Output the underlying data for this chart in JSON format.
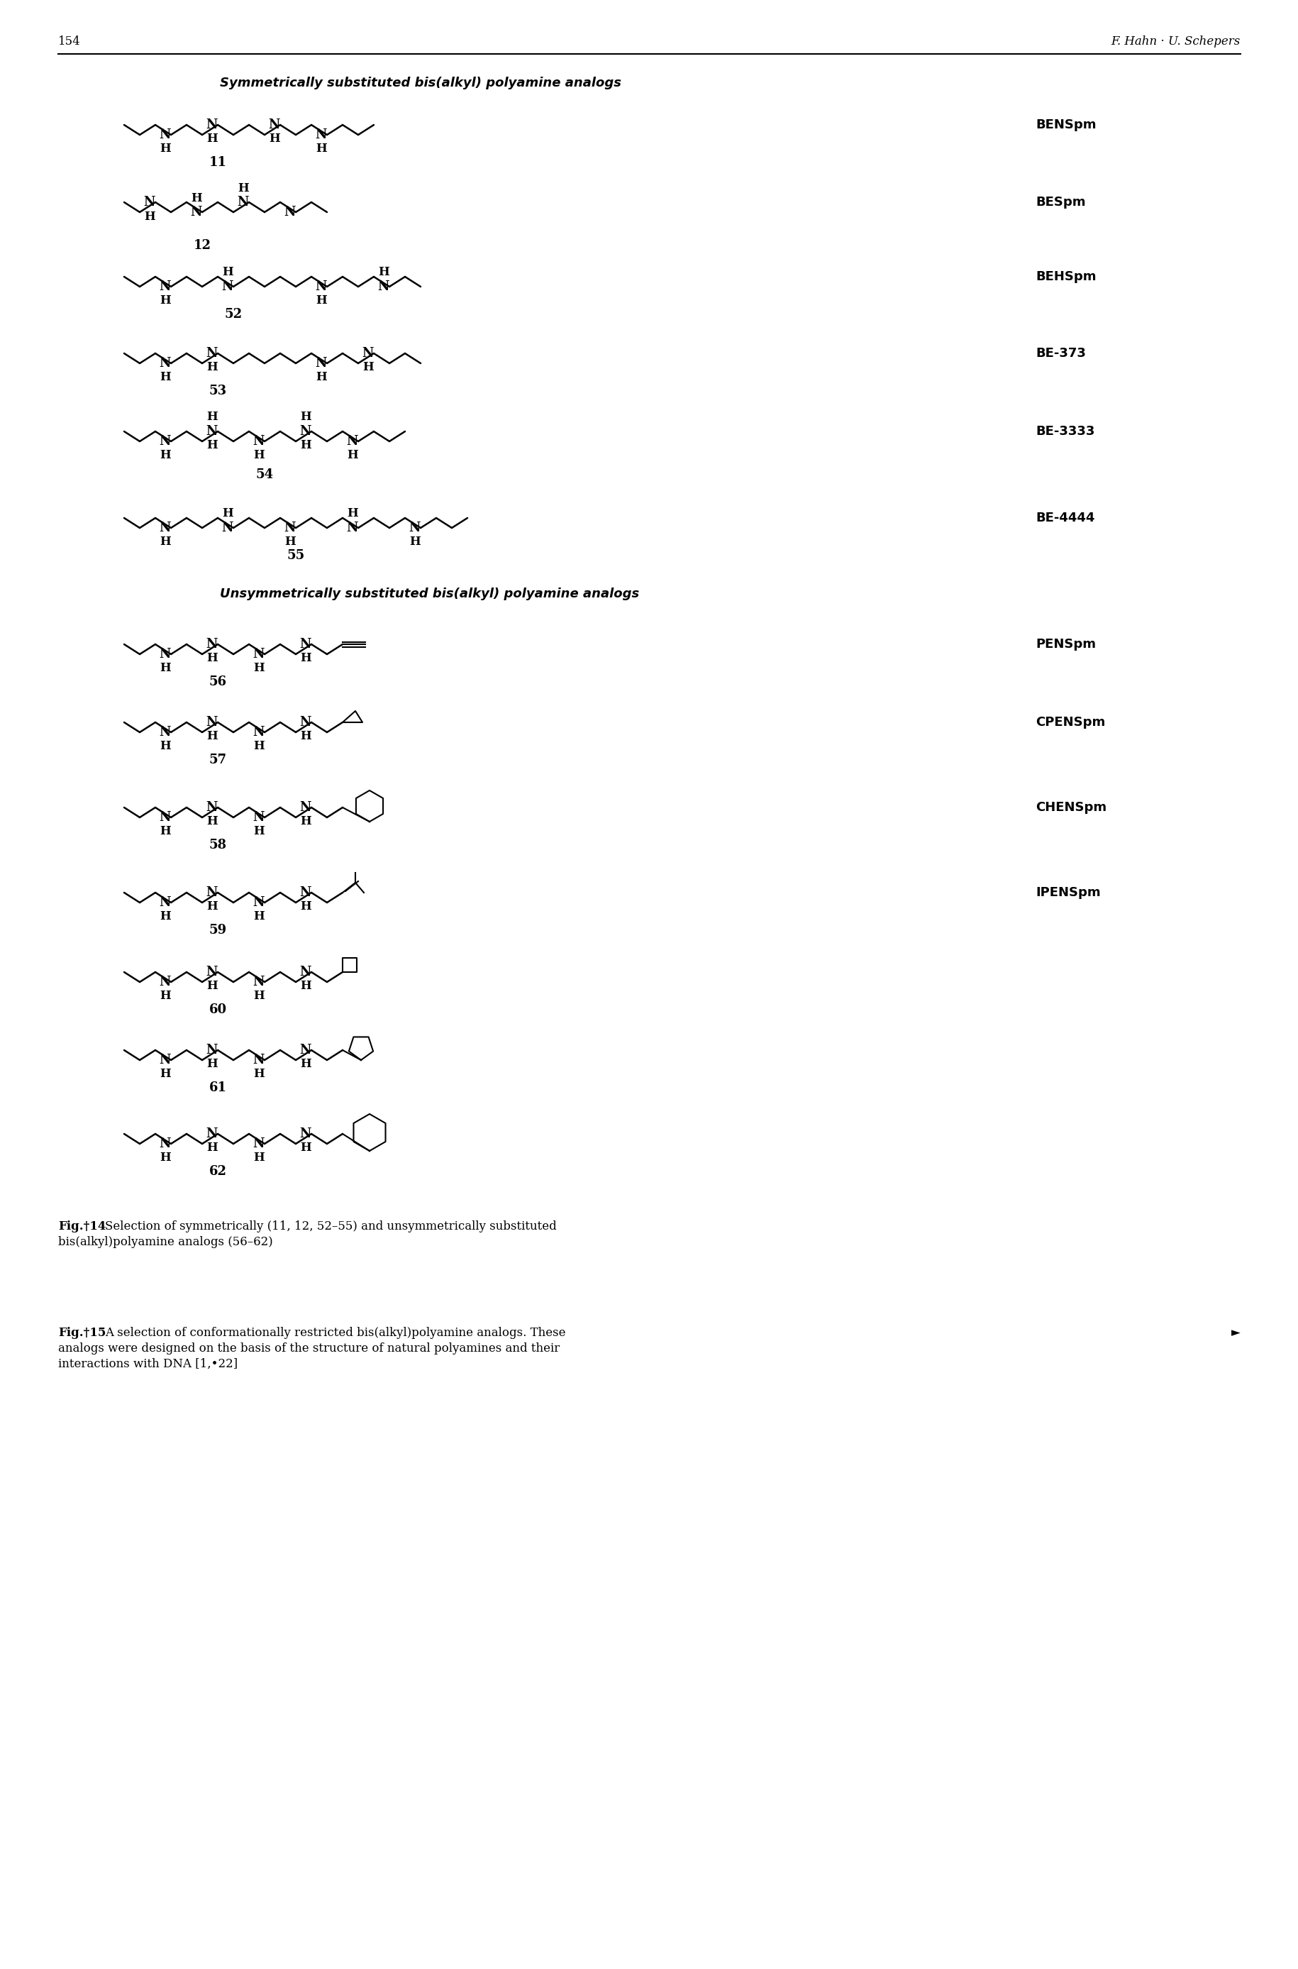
{
  "page_number": "154",
  "header_right": "F. Hahn · U. Schepers",
  "section1_title": "Symmetrically substituted bis(alkyl) polyamine analogs",
  "section2_title": "Unsymmetrically substituted bis(alkyl) polyamine analogs",
  "fig14_bold": "Fig. 14",
  "fig14_rest": "  Selection of symmetrically (11, 12, 52–55) and unsymmetrically substituted\nbis(alkyl)polyamine analogs (56–62)",
  "fig15_bold": "Fig. 15",
  "fig15_rest": "  A selection of conformationally restricted bis(alkyl)polyamine analogs. These ►\nanalogs were designed on the basis of the structure of natural polyamines and their\ninteractions with DNA [1, 22]",
  "background_color": "#ffffff"
}
